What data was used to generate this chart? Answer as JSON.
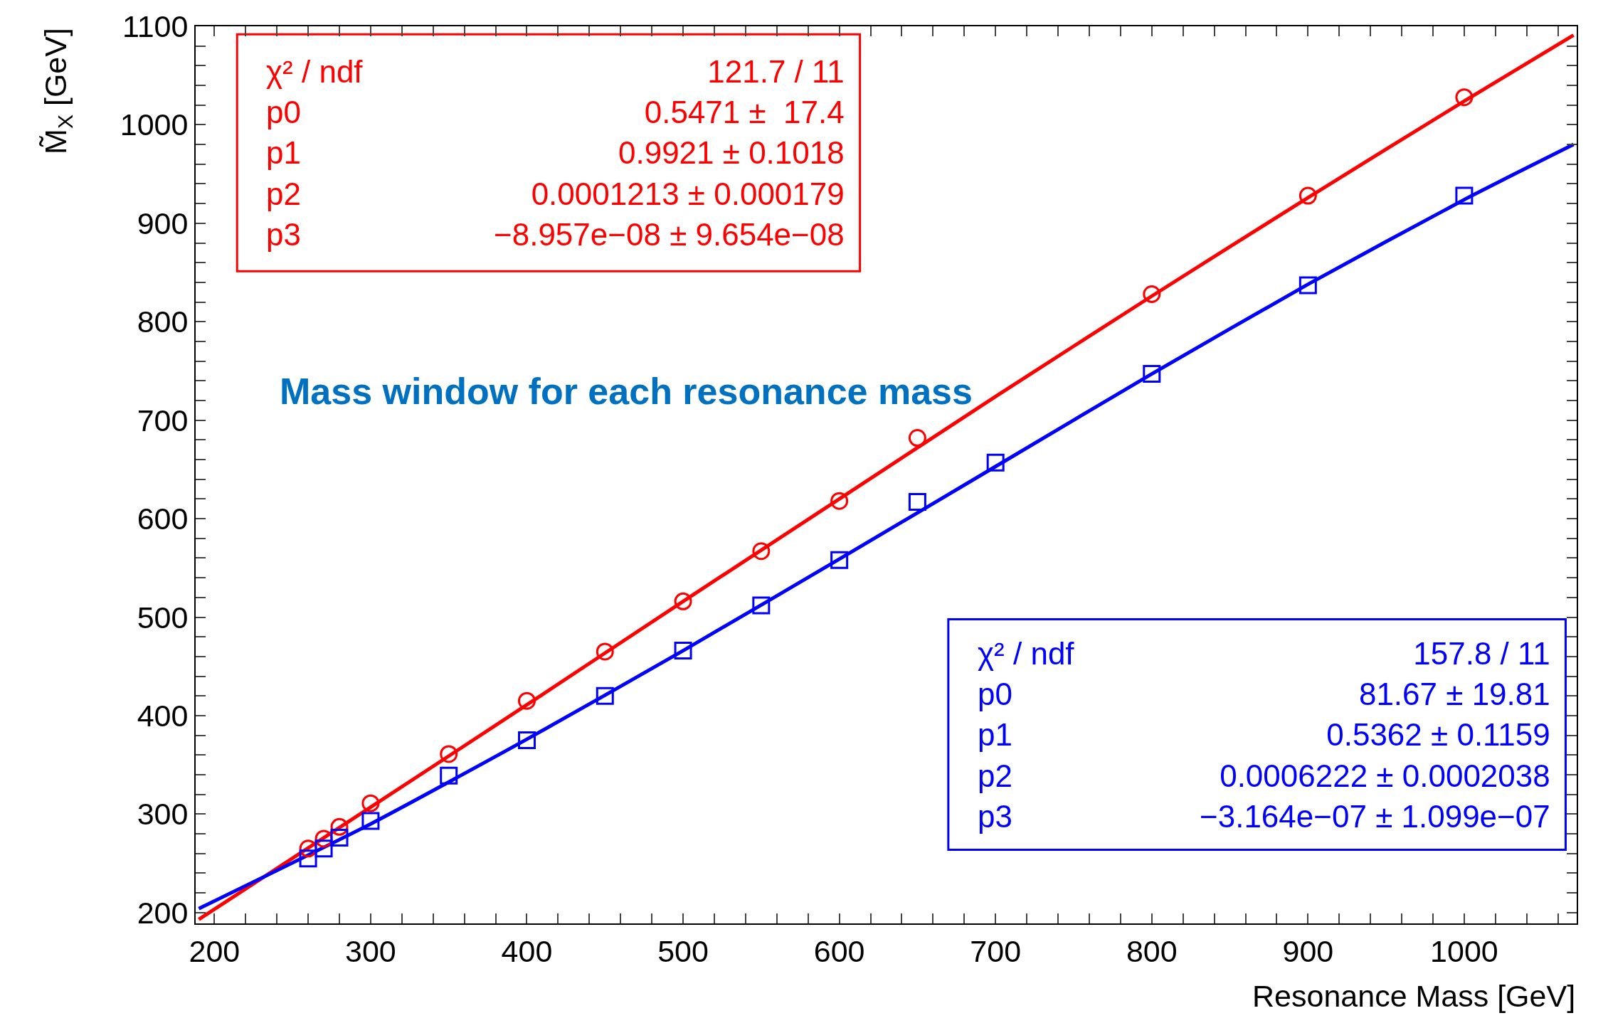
{
  "chart_data": {
    "type": "scatter",
    "xlabel": "Resonance Mass [GeV]",
    "ylabel": "M̃$_{X}$ [GeV]",
    "xlim": [
      188,
      1072
    ],
    "ylim": [
      189,
      1100
    ],
    "xticks": [
      200,
      {
        "value": 220,
        "label": null
      },
      {
        "value": 240,
        "label": null
      },
      {
        "value": 260,
        "label": null
      },
      {
        "value": 280,
        "label": null
      },
      300,
      {
        "value": 320,
        "label": null
      },
      {
        "value": 340,
        "label": null
      },
      {
        "value": 360,
        "label": null
      },
      {
        "value": 380,
        "label": null
      },
      400,
      {
        "value": 420,
        "label": null
      },
      {
        "value": 440,
        "label": null
      },
      {
        "value": 460,
        "label": null
      },
      {
        "value": 480,
        "label": null
      },
      500,
      {
        "value": 520,
        "label": null
      },
      {
        "value": 540,
        "label": null
      },
      {
        "value": 560,
        "label": null
      },
      {
        "value": 580,
        "label": null
      },
      600,
      {
        "value": 620,
        "label": null
      },
      {
        "value": 640,
        "label": null
      },
      {
        "value": 660,
        "label": null
      },
      {
        "value": 680,
        "label": null
      },
      700,
      {
        "value": 720,
        "label": null
      },
      {
        "value": 740,
        "label": null
      },
      {
        "value": 760,
        "label": null
      },
      {
        "value": 780,
        "label": null
      },
      800,
      {
        "value": 820,
        "label": null
      },
      {
        "value": 840,
        "label": null
      },
      {
        "value": 860,
        "label": null
      },
      {
        "value": 880,
        "label": null
      },
      900,
      {
        "value": 920,
        "label": null
      },
      {
        "value": 940,
        "label": null
      },
      {
        "value": 960,
        "label": null
      },
      {
        "value": 980,
        "label": null
      },
      1000,
      {
        "value": 1020,
        "label": null
      },
      {
        "value": 1040,
        "label": null
      },
      {
        "value": 1060,
        "label": null
      }
    ],
    "yticks": [
      200,
      {
        "value": 220,
        "label": null
      },
      {
        "value": 240,
        "label": null
      },
      {
        "value": 260,
        "label": null
      },
      {
        "value": 280,
        "label": null
      },
      300,
      {
        "value": 320,
        "label": null
      },
      {
        "value": 340,
        "label": null
      },
      {
        "value": 360,
        "label": null
      },
      {
        "value": 380,
        "label": null
      },
      400,
      {
        "value": 420,
        "label": null
      },
      {
        "value": 440,
        "label": null
      },
      {
        "value": 460,
        "label": null
      },
      {
        "value": 480,
        "label": null
      },
      500,
      {
        "value": 520,
        "label": null
      },
      {
        "value": 540,
        "label": null
      },
      {
        "value": 560,
        "label": null
      },
      {
        "value": 580,
        "label": null
      },
      600,
      {
        "value": 620,
        "label": null
      },
      {
        "value": 640,
        "label": null
      },
      {
        "value": 660,
        "label": null
      },
      {
        "value": 680,
        "label": null
      },
      700,
      {
        "value": 720,
        "label": null
      },
      {
        "value": 740,
        "label": null
      },
      {
        "value": 760,
        "label": null
      },
      {
        "value": 780,
        "label": null
      },
      800,
      {
        "value": 820,
        "label": null
      },
      {
        "value": 840,
        "label": null
      },
      {
        "value": 860,
        "label": null
      },
      {
        "value": 880,
        "label": null
      },
      900,
      {
        "value": 920,
        "label": null
      },
      {
        "value": 940,
        "label": null
      },
      {
        "value": 960,
        "label": null
      },
      {
        "value": 980,
        "label": null
      },
      1000,
      {
        "value": 1020,
        "label": null
      },
      {
        "value": 1040,
        "label": null
      },
      {
        "value": 1060,
        "label": null
      },
      {
        "value": 1080,
        "label": null
      },
      1100
    ],
    "grid": false,
    "series": [
      {
        "type": "scatter",
        "marker": "circle",
        "color": "#ff0000",
        "x": [
          260,
          270,
          280,
          300,
          350,
          400,
          450,
          500,
          550,
          600,
          650,
          800,
          900,
          1000
        ],
        "values": [
          265,
          275,
          287,
          311,
          361,
          415,
          465,
          516,
          567,
          618,
          682,
          828,
          928,
          1028
        ]
      },
      {
        "type": "scatter",
        "marker": "square",
        "color": "#0000ff",
        "x": [
          260,
          270,
          280,
          300,
          350,
          400,
          450,
          500,
          550,
          600,
          650,
          700,
          800,
          900,
          1000
        ],
        "values": [
          255,
          265,
          276,
          293,
          339,
          375,
          420,
          466,
          512,
          558,
          617,
          657,
          747,
          837,
          928
        ]
      },
      {
        "type": "line",
        "marker": "none",
        "color": "#ff0000",
        "x": [
          190,
          300,
          400,
          500,
          600,
          700,
          800,
          900,
          1000,
          1070
        ],
        "values": [
          193,
          307,
          411,
          516,
          620,
          724,
          826,
          926,
          1024,
          1091
        ]
      },
      {
        "type": "line",
        "marker": "none",
        "color": "#0000ff",
        "x": [
          190,
          300,
          400,
          500,
          600,
          700,
          800,
          900,
          1000,
          1070
        ],
        "values": [
          204,
          290,
          376,
          466,
          559,
          653,
          747,
          838,
          924,
          980
        ]
      }
    ],
    "annotations": [
      "Mass window for each resonance mass",
      "χ² / ndf\np0\np1\np2\np3",
      "121.7 / 11\n0.5471 ±  17.4\n0.9921 ± 0.1018\n0.0001213 ± 0.000179\n−8.957e−08 ± 9.654e−08",
      "χ² / ndf\np0\np1\np2\np3",
      "157.8 / 11\n81.67 ± 19.81\n0.5362 ± 0.1159\n0.0006222 ± 0.0002038\n−3.164e−07 ± 1.099e−07"
    ]
  }
}
